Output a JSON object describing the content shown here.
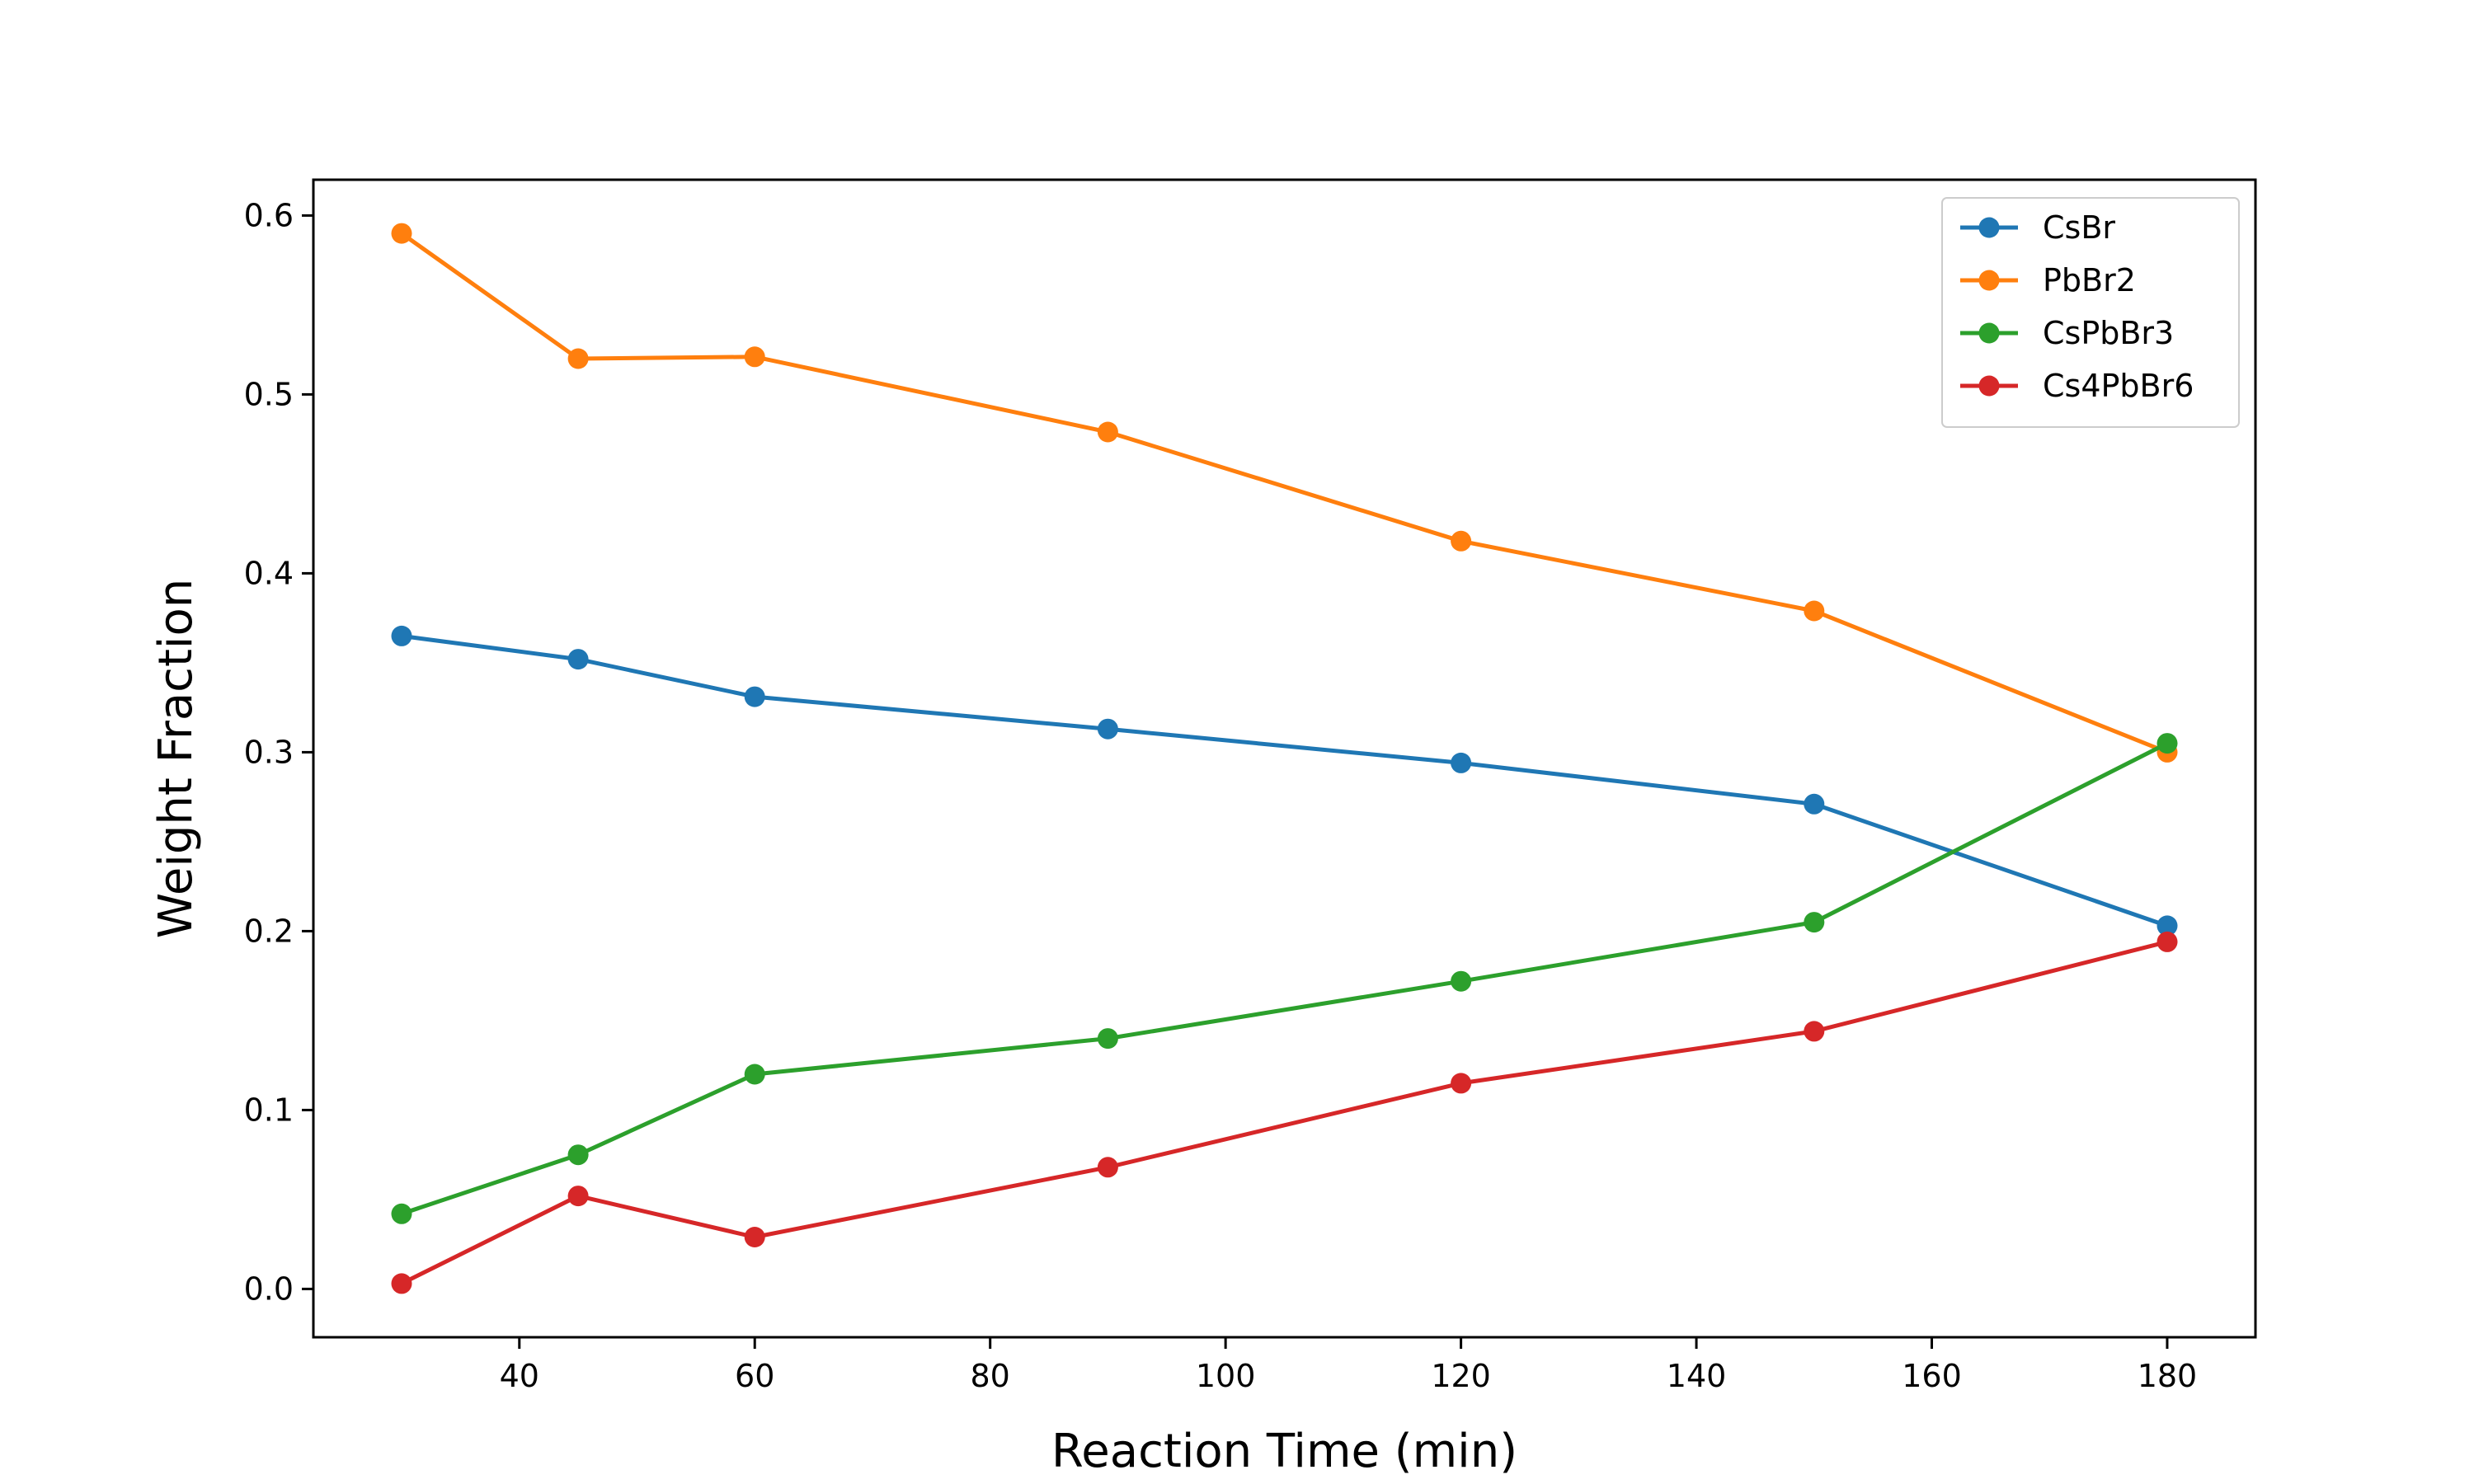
{
  "chart_data": {
    "type": "line",
    "title": "",
    "xlabel": "Reaction Time (min)",
    "ylabel": "Weight Fraction",
    "xlim": [
      22.5,
      187.5
    ],
    "ylim": [
      -0.027,
      0.62
    ],
    "xticks": [
      40,
      60,
      80,
      100,
      120,
      140,
      160,
      180
    ],
    "xtick_labels": [
      "40",
      "60",
      "80",
      "100",
      "120",
      "140",
      "160",
      "180"
    ],
    "yticks": [
      0.0,
      0.1,
      0.2,
      0.3,
      0.4,
      0.5,
      0.6
    ],
    "ytick_labels": [
      "0.0",
      "0.1",
      "0.2",
      "0.3",
      "0.4",
      "0.5",
      "0.6"
    ],
    "grid": false,
    "legend_position": "top-right",
    "x": [
      30,
      45,
      60,
      90,
      120,
      150,
      180
    ],
    "series": [
      {
        "name": "CsBr",
        "color": "#1f77b4",
        "values": [
          0.365,
          0.352,
          0.331,
          0.313,
          0.294,
          0.271,
          0.203
        ]
      },
      {
        "name": "PbBr2",
        "color": "#ff7f0e",
        "values": [
          0.59,
          0.52,
          0.521,
          0.479,
          0.418,
          0.379,
          0.3
        ]
      },
      {
        "name": "CsPbBr3",
        "color": "#2ca02c",
        "values": [
          0.042,
          0.075,
          0.12,
          0.14,
          0.172,
          0.205,
          0.305
        ]
      },
      {
        "name": "Cs4PbBr6",
        "color": "#d62728",
        "values": [
          0.003,
          0.052,
          0.029,
          0.068,
          0.115,
          0.144,
          0.194
        ]
      }
    ]
  }
}
